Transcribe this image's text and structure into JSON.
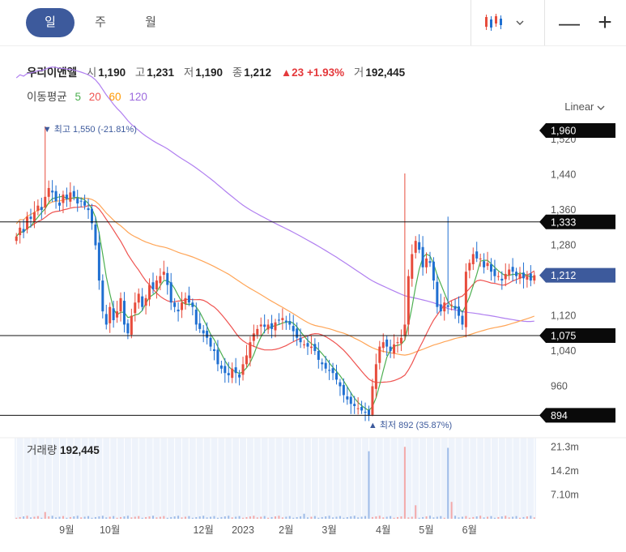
{
  "tabs": [
    {
      "label": "일",
      "active": true
    },
    {
      "label": "주",
      "active": false
    },
    {
      "label": "월",
      "active": false
    }
  ],
  "toolbar": {
    "chart_icon": "candlestick-chart-icon",
    "dropdown_icon": "chevron-down-icon",
    "zoom_out": "—",
    "zoom_in": "+"
  },
  "quote": {
    "name": "우리이앤엘",
    "open_label": "시",
    "open": "1,190",
    "high_label": "고",
    "high": "1,231",
    "low_label": "저",
    "low": "1,190",
    "close_label": "종",
    "close": "1,212",
    "change": "▲23",
    "change_pct": "+1.93%",
    "volume_label": "거",
    "volume": "192,445"
  },
  "moving_avg": {
    "label": "이동평균",
    "periods": [
      {
        "label": "5",
        "color": "#4caf50"
      },
      {
        "label": "20",
        "color": "#ef5350"
      },
      {
        "label": "60",
        "color": "#ff9800"
      },
      {
        "label": "120",
        "color": "#9c6ade"
      }
    ]
  },
  "scale_label": "Linear",
  "colors": {
    "up": "#e74c3c",
    "down": "#1f6fd1",
    "accent": "#3d5a9c",
    "ma5": "#4caf50",
    "ma20": "#ef5350",
    "ma60": "#ffa557",
    "ma120": "#b07ff0"
  },
  "chart_data": {
    "type": "candlestick",
    "title": "",
    "y_ticks": [
      "1,520",
      "1,440",
      "1,360",
      "1,280",
      "1,120",
      "1,040",
      "960"
    ],
    "y_tick_values": [
      1520,
      1440,
      1360,
      1280,
      1120,
      1040,
      960
    ],
    "ylim": [
      880,
      1570
    ],
    "x_ticks": [
      "9월",
      "10월",
      "12월",
      "2023",
      "2월",
      "3월",
      "4월",
      "5월",
      "6월"
    ],
    "x_tick_index": [
      14,
      26,
      52,
      63,
      75,
      87,
      102,
      114,
      126
    ],
    "price_lines": [
      {
        "label": "1,960",
        "value": 1560,
        "style": "black",
        "display_only": true
      },
      {
        "label": "1,333",
        "value": 1333,
        "style": "black"
      },
      {
        "label": "1,212",
        "value": 1212,
        "style": "current"
      },
      {
        "label": "1,075",
        "value": 1075,
        "style": "black"
      },
      {
        "label": "894",
        "value": 894,
        "style": "black"
      }
    ],
    "annotations": {
      "high_label": "최고",
      "high_value": "1,550 (-21.81%)",
      "high_price": 1550,
      "high_index": 8,
      "low_label": "최저",
      "low_value": "892 (35.87%)",
      "low_price": 892,
      "low_index": 99
    },
    "volume_label": "거래량",
    "volume_value": "192,445",
    "volume_ticks": [
      "21.3m",
      "14.2m",
      "7.10m"
    ],
    "volume_tick_values": [
      21.3,
      14.2,
      7.1
    ],
    "close": [
      1300,
      1320,
      1310,
      1345,
      1340,
      1355,
      1370,
      1360,
      1390,
      1410,
      1400,
      1380,
      1370,
      1395,
      1385,
      1400,
      1390,
      1375,
      1380,
      1370,
      1360,
      1330,
      1280,
      1200,
      1130,
      1100,
      1140,
      1110,
      1130,
      1160,
      1100,
      1080,
      1120,
      1150,
      1170,
      1140,
      1160,
      1190,
      1180,
      1200,
      1210,
      1220,
      1190,
      1150,
      1140,
      1130,
      1150,
      1160,
      1150,
      1140,
      1100,
      1090,
      1080,
      1070,
      1050,
      1040,
      1010,
      1000,
      990,
      985,
      1000,
      990,
      980,
      1010,
      1030,
      1060,
      1080,
      1090,
      1100,
      1095,
      1100,
      1090,
      1105,
      1110,
      1115,
      1105,
      1100,
      1085,
      1070,
      1060,
      1055,
      1050,
      1050,
      1040,
      1020,
      1010,
      1000,
      995,
      990,
      975,
      960,
      940,
      930,
      920,
      915,
      910,
      905,
      900,
      895,
      960,
      1010,
      1050,
      1060,
      1050,
      1040,
      1055,
      1060,
      1070,
      1100,
      1210,
      1260,
      1290,
      1270,
      1230,
      1250,
      1240,
      1200,
      1140,
      1130,
      1150,
      1140,
      1145,
      1135,
      1120,
      1100,
      1220,
      1240,
      1260,
      1250,
      1250,
      1230,
      1240,
      1220,
      1210,
      1210,
      1200,
      1215,
      1225,
      1220,
      1210,
      1215,
      1205,
      1210,
      1200,
      1212
    ],
    "vol_highlight": [
      [
        98,
        20.0
      ],
      [
        108,
        21.3
      ],
      [
        120,
        21.0
      ],
      [
        8,
        2.0
      ],
      [
        80,
        1.5
      ],
      [
        111,
        4.0
      ],
      [
        121,
        5.0
      ]
    ]
  }
}
